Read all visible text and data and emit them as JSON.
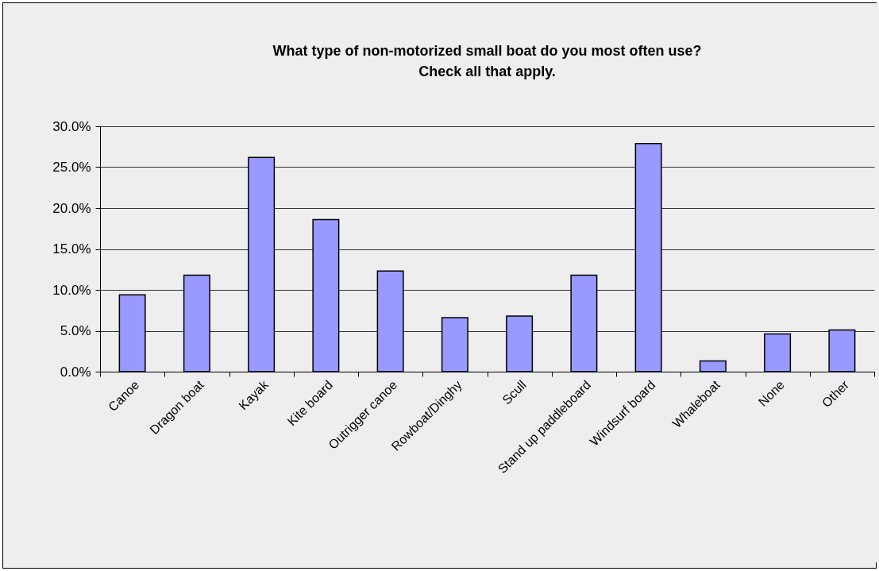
{
  "chart_data": {
    "type": "bar",
    "title": "What type of non-motorized small boat do you most often use?\nCheck all that apply.",
    "categories": [
      "Canoe",
      "Dragon boat",
      "Kayak",
      "Kite board",
      "Outrigger canoe",
      "Rowboat/Dinghy",
      "Scull",
      "Stand up paddleboard",
      "Windsurf board",
      "Whaleboat",
      "None",
      "Other"
    ],
    "values": [
      9.4,
      11.8,
      26.2,
      18.6,
      12.3,
      6.6,
      6.8,
      11.8,
      27.9,
      1.3,
      4.6,
      5.1
    ],
    "color": "#9999ff",
    "ylim": [
      0,
      30
    ],
    "yticks": [
      {
        "value": 0,
        "label": "0.0%"
      },
      {
        "value": 5,
        "label": "5.0%"
      },
      {
        "value": 10,
        "label": "10.0%"
      },
      {
        "value": 15,
        "label": "15.0%"
      },
      {
        "value": 20,
        "label": "20.0%"
      },
      {
        "value": 25,
        "label": "25.0%"
      },
      {
        "value": 30,
        "label": "30.0%"
      }
    ],
    "grid": "y"
  }
}
